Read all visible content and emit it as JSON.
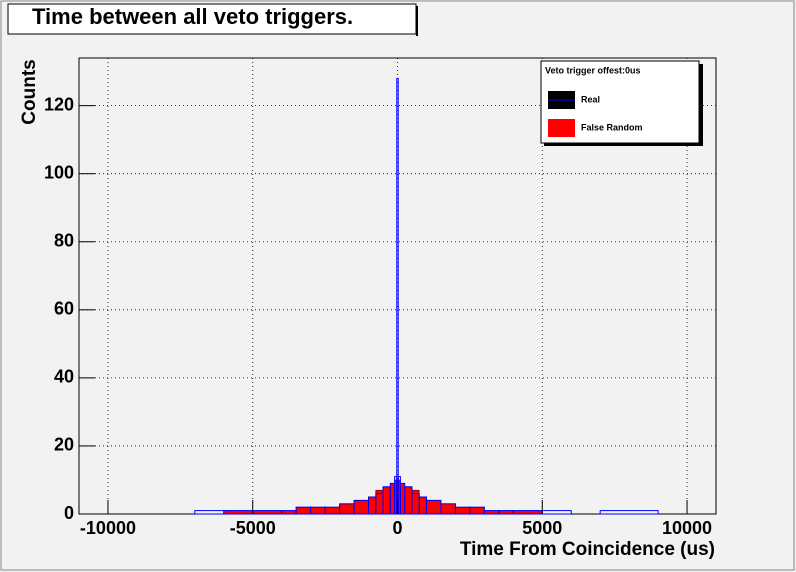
{
  "chart_data": {
    "type": "histogram",
    "title": "Time between all veto triggers.",
    "x_label": "Time From Coincidence (us)",
    "y_label": "Counts",
    "legend_title": "Veto trigger offest:0us",
    "legend": "upper right",
    "grid": true,
    "bins": [
      -11000,
      -9000,
      -7000,
      -6000,
      -5000,
      -4000,
      -3500,
      -3000,
      -2500,
      -2000,
      -1500,
      -1000,
      -750,
      -500,
      -250,
      -100,
      -25,
      25,
      100,
      250,
      500,
      750,
      1000,
      1500,
      2000,
      2500,
      3000,
      3500,
      4000,
      5000,
      6000,
      7000,
      9000,
      11000
    ],
    "series": [
      {
        "name": "Real",
        "color": "#0000ff",
        "fill": false,
        "values": [
          0,
          0,
          1,
          1,
          1,
          1,
          2,
          2,
          2,
          3,
          4,
          5,
          6,
          8,
          9,
          11,
          128,
          11,
          9,
          8,
          6,
          5,
          4,
          3,
          2,
          2,
          1,
          1,
          1,
          1,
          0,
          1,
          0
        ]
      },
      {
        "name": "False Random",
        "color": "#ff0000",
        "fill": true,
        "values": [
          0,
          0,
          0,
          1,
          1,
          1,
          2,
          2,
          2,
          3,
          4,
          5,
          7,
          8,
          9,
          10,
          10,
          10,
          9,
          8,
          7,
          5,
          4,
          3,
          2,
          2,
          1,
          1,
          1,
          0,
          0,
          0,
          0
        ]
      }
    ],
    "xlim": [
      -11000,
      11000
    ],
    "ylim": [
      0,
      134
    ],
    "xticks": [
      -10000,
      -5000,
      0,
      5000,
      10000
    ],
    "yticks": [
      0,
      20,
      40,
      60,
      80,
      100,
      120
    ]
  }
}
